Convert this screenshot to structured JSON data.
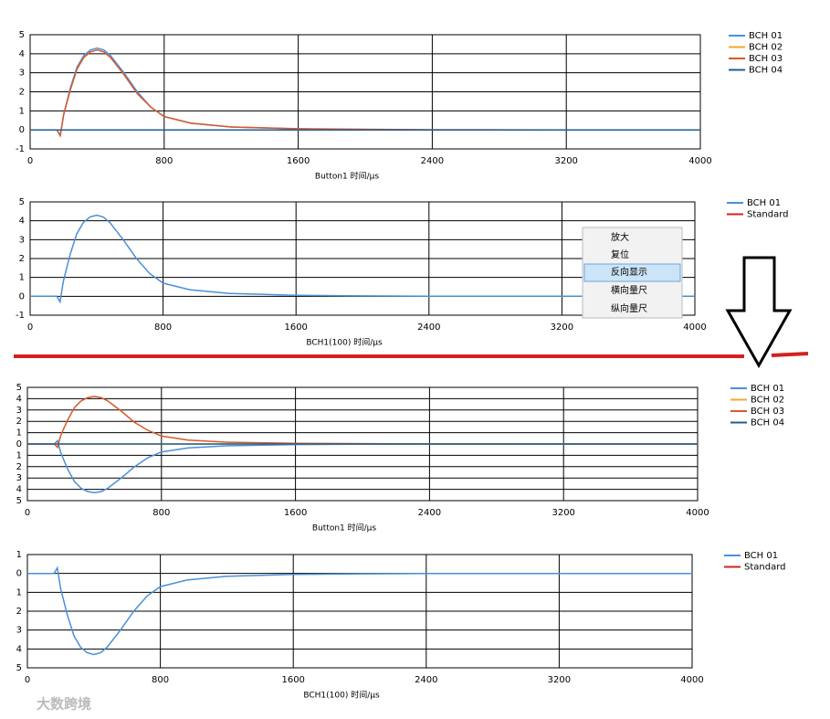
{
  "chart_data": [
    {
      "type": "line",
      "x_label": "Button1 时间/μs",
      "x": [
        0,
        160,
        180,
        200,
        240,
        280,
        320,
        360,
        400,
        440,
        480,
        560,
        640,
        720,
        800,
        960,
        1200,
        1600,
        2000,
        2400,
        3200,
        4000
      ],
      "xlim": [
        0,
        4000
      ],
      "xticks": [
        0,
        800,
        1600,
        2400,
        3200,
        4000
      ],
      "ylim": [
        -1,
        5
      ],
      "yticks": [
        -1,
        0,
        1,
        2,
        3,
        4,
        5
      ],
      "grid": true,
      "series": [
        {
          "name": "BCH 01",
          "color": "#4a90d9",
          "values": [
            0,
            0,
            -0.3,
            0.8,
            2.2,
            3.3,
            3.9,
            4.2,
            4.3,
            4.2,
            3.9,
            3.0,
            2.0,
            1.2,
            0.7,
            0.35,
            0.15,
            0.05,
            0.02,
            0,
            0,
            0
          ]
        },
        {
          "name": "BCH 02",
          "color": "#f0a830",
          "values": [
            0,
            0,
            0,
            0,
            0,
            0,
            0,
            0,
            0,
            0,
            0,
            0,
            0,
            0,
            0,
            0,
            0,
            0,
            0,
            0,
            0,
            0
          ]
        },
        {
          "name": "BCH 03",
          "color": "#d9582b",
          "values": [
            0,
            0,
            -0.3,
            0.8,
            2.1,
            3.2,
            3.8,
            4.1,
            4.2,
            4.1,
            3.8,
            2.9,
            1.9,
            1.2,
            0.7,
            0.35,
            0.15,
            0.06,
            0.03,
            0.01,
            0,
            0
          ]
        },
        {
          "name": "BCH 04",
          "color": "#1f5f8f",
          "values": [
            0,
            0,
            0,
            0,
            0,
            0,
            0,
            0,
            0,
            0,
            0,
            0,
            0,
            0,
            0,
            0,
            0,
            0,
            0,
            0,
            0,
            0
          ]
        }
      ]
    },
    {
      "type": "line",
      "x_label": "BCH1(100) 时间/μs",
      "x": [
        0,
        160,
        180,
        200,
        240,
        280,
        320,
        360,
        400,
        440,
        480,
        560,
        640,
        720,
        800,
        960,
        1200,
        1600,
        2000,
        2400,
        3200,
        4000
      ],
      "xlim": [
        0,
        4000
      ],
      "xticks": [
        0,
        800,
        1600,
        2400,
        3200,
        4000
      ],
      "ylim": [
        -1,
        5
      ],
      "yticks": [
        -1,
        0,
        1,
        2,
        3,
        4,
        5
      ],
      "grid": true,
      "series": [
        {
          "name": "BCH 01",
          "color": "#4a90d9",
          "values": [
            0,
            0,
            -0.3,
            0.8,
            2.2,
            3.3,
            3.9,
            4.2,
            4.3,
            4.2,
            3.9,
            3.0,
            2.0,
            1.2,
            0.7,
            0.35,
            0.15,
            0.05,
            0.02,
            0,
            0,
            0
          ]
        },
        {
          "name": "Standard",
          "color": "#d42020",
          "values": [
            null,
            null,
            null,
            null,
            null,
            null,
            null,
            null,
            null,
            null,
            null,
            null,
            null,
            null,
            null,
            null,
            null,
            null,
            null,
            null,
            null,
            null
          ]
        }
      ]
    },
    {
      "type": "line",
      "x_label": "Button1 时间/μs",
      "x": [
        0,
        160,
        180,
        200,
        240,
        280,
        320,
        360,
        400,
        440,
        480,
        560,
        640,
        720,
        800,
        960,
        1200,
        1600,
        2000,
        2400,
        3200,
        4000
      ],
      "xlim": [
        0,
        4000
      ],
      "xticks": [
        0,
        800,
        1600,
        2400,
        3200,
        4000
      ],
      "ylim": [
        -5,
        5
      ],
      "yticks": [
        {
          "value": -5,
          "label": "5"
        },
        {
          "value": -4,
          "label": "4"
        },
        {
          "value": -3,
          "label": "3"
        },
        {
          "value": -2,
          "label": "2"
        },
        {
          "value": -1,
          "label": "1"
        },
        0,
        1,
        2,
        3,
        4,
        5
      ],
      "grid": true,
      "series": [
        {
          "name": "BCH 01",
          "color": "#4a90d9",
          "values": [
            0,
            0,
            0.3,
            -0.8,
            -2.2,
            -3.3,
            -3.9,
            -4.2,
            -4.3,
            -4.2,
            -3.9,
            -3.0,
            -2.0,
            -1.2,
            -0.7,
            -0.35,
            -0.15,
            -0.05,
            -0.02,
            0,
            0,
            0
          ]
        },
        {
          "name": "BCH 02",
          "color": "#f0a830",
          "values": [
            0,
            0,
            0,
            0,
            0,
            0,
            0,
            0,
            0,
            0,
            0,
            0,
            0,
            0,
            0,
            0,
            0,
            0,
            0,
            0,
            0,
            0
          ]
        },
        {
          "name": "BCH 03",
          "color": "#d9582b",
          "values": [
            0,
            0,
            -0.3,
            0.8,
            2.1,
            3.2,
            3.8,
            4.1,
            4.2,
            4.1,
            3.8,
            2.9,
            1.9,
            1.2,
            0.7,
            0.35,
            0.15,
            0.06,
            0.03,
            0.01,
            0,
            0
          ]
        },
        {
          "name": "BCH 04",
          "color": "#1f5f8f",
          "values": [
            0,
            0,
            0,
            0,
            0,
            0,
            0,
            0,
            0,
            0,
            0,
            0,
            0,
            0,
            0,
            0,
            0,
            0,
            0,
            0,
            0,
            0
          ]
        }
      ]
    },
    {
      "type": "line",
      "x_label": "BCH1(100) 时间/μs",
      "x": [
        0,
        160,
        180,
        200,
        240,
        280,
        320,
        360,
        400,
        440,
        480,
        560,
        640,
        720,
        800,
        960,
        1200,
        1600,
        2000,
        2400,
        3200,
        4000
      ],
      "xlim": [
        0,
        4000
      ],
      "xticks": [
        0,
        800,
        1600,
        2400,
        3200,
        4000
      ],
      "ylim": [
        -5,
        1
      ],
      "yticks": [
        {
          "value": -5,
          "label": "5"
        },
        {
          "value": -4,
          "label": "4"
        },
        {
          "value": -3,
          "label": "3"
        },
        {
          "value": -2,
          "label": "2"
        },
        {
          "value": -1,
          "label": "1"
        },
        0,
        1
      ],
      "grid": true,
      "series": [
        {
          "name": "BCH 01",
          "color": "#4a90d9",
          "values": [
            0,
            0,
            0.3,
            -0.8,
            -2.2,
            -3.3,
            -3.9,
            -4.2,
            -4.3,
            -4.2,
            -3.9,
            -3.0,
            -2.0,
            -1.2,
            -0.7,
            -0.35,
            -0.15,
            -0.05,
            -0.02,
            0,
            0,
            0
          ]
        },
        {
          "name": "Standard",
          "color": "#d42020",
          "values": [
            null,
            null,
            null,
            null,
            null,
            null,
            null,
            null,
            null,
            null,
            null,
            null,
            null,
            null,
            null,
            null,
            null,
            null,
            null,
            null,
            null,
            null
          ]
        }
      ]
    }
  ],
  "context_menu": {
    "items": [
      "放大",
      "复位",
      "反向显示",
      "横向量尺",
      "纵向量尺"
    ],
    "highlighted": 2
  },
  "watermark": "大数跨境"
}
